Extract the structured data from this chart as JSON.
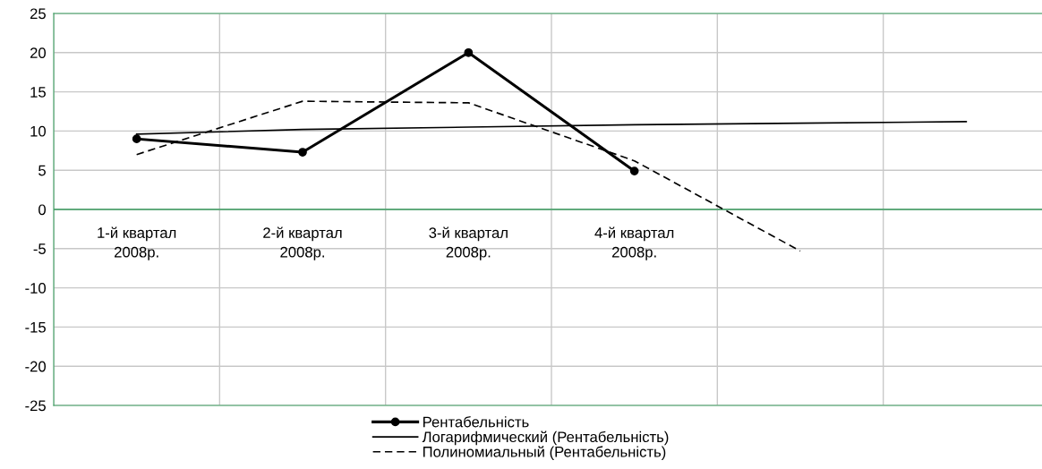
{
  "chart_data": {
    "type": "line",
    "categories": [
      "1-й квартал\n2008р.",
      "2-й квартал\n2008р.",
      "3-й квартал\n2008р.",
      "4-й квартал\n2008р.",
      null,
      null
    ],
    "series": [
      {
        "name": "Рентабельність",
        "color": "#000000",
        "values": [
          9.0,
          7.3,
          20.0,
          4.9,
          null,
          null
        ],
        "marker": "circle",
        "line_style": "solid"
      },
      {
        "name": "Логарифмический (Рентабельність)",
        "color": "#000000",
        "values": [
          9.6,
          10.2,
          10.5,
          10.8,
          11.0,
          11.2
        ],
        "marker": "none",
        "line_style": "solid"
      },
      {
        "name": "Полиномиальный (Рентабельність)",
        "color": "#000000",
        "values": [
          7.0,
          13.8,
          13.6,
          6.2,
          -5.3,
          null
        ],
        "marker": "none",
        "line_style": "dashed"
      }
    ],
    "ylim": [
      -25,
      25
    ],
    "yticks": [
      -25,
      -20,
      -15,
      -10,
      -5,
      0,
      5,
      10,
      15,
      20,
      25
    ],
    "grid": true,
    "legend": "bottom"
  }
}
